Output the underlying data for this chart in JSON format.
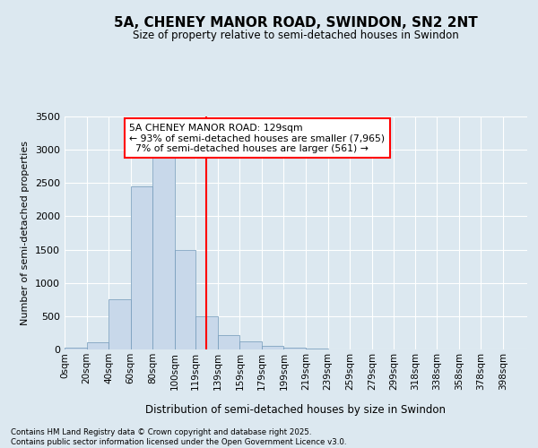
{
  "title": "5A, CHENEY MANOR ROAD, SWINDON, SN2 2NT",
  "subtitle": "Size of property relative to semi-detached houses in Swindon",
  "xlabel": "Distribution of semi-detached houses by size in Swindon",
  "ylabel": "Number of semi-detached properties",
  "property_label": "5A CHENEY MANOR ROAD: 129sqm",
  "annotation_line1": "← 93% of semi-detached houses are smaller (7,965)",
  "annotation_line2": "7% of semi-detached houses are larger (561) →",
  "bin_labels": [
    "0sqm",
    "20sqm",
    "40sqm",
    "60sqm",
    "80sqm",
    "100sqm",
    "119sqm",
    "139sqm",
    "159sqm",
    "179sqm",
    "199sqm",
    "219sqm",
    "239sqm",
    "259sqm",
    "279sqm",
    "299sqm",
    "318sqm",
    "338sqm",
    "358sqm",
    "378sqm",
    "398sqm"
  ],
  "bin_edges": [
    0,
    20,
    40,
    60,
    80,
    100,
    119,
    139,
    159,
    179,
    199,
    219,
    239,
    259,
    279,
    299,
    318,
    338,
    358,
    378,
    398,
    420
  ],
  "bar_values": [
    25,
    110,
    750,
    2450,
    2900,
    1500,
    500,
    220,
    115,
    55,
    28,
    10,
    4,
    2,
    1,
    1,
    0,
    0,
    0,
    0,
    0
  ],
  "bar_color": "#c8d8ea",
  "bar_edge_color": "#7098b8",
  "vline_color": "red",
  "vline_x": 129,
  "background_color": "#dce8f0",
  "grid_color": "white",
  "ylim": [
    0,
    3500
  ],
  "yticks": [
    0,
    500,
    1000,
    1500,
    2000,
    2500,
    3000,
    3500
  ],
  "footer_line1": "Contains HM Land Registry data © Crown copyright and database right 2025.",
  "footer_line2": "Contains public sector information licensed under the Open Government Licence v3.0."
}
